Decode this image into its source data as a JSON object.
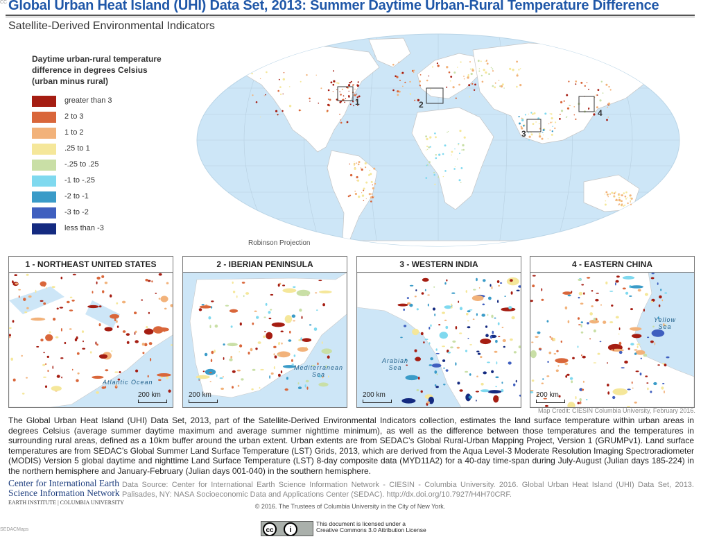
{
  "header": {
    "title": "Global Urban Heat Island (UHI) Data Set, 2013: Summer Daytime Urban-Rural Temperature Difference",
    "subtitle": "Satellite-Derived Environmental Indicators",
    "corner_tag": "CC"
  },
  "legend": {
    "title": "Daytime urban-rural temperature difference in degrees Celsius (urban minus rural)",
    "classes": [
      {
        "label": "greater than 3",
        "color": "#a51d12"
      },
      {
        "label": "2 to 3",
        "color": "#d9663a"
      },
      {
        "label": "1 to 2",
        "color": "#f2b27a"
      },
      {
        "label": ".25 to 1",
        "color": "#f5e79a"
      },
      {
        "label": "-.25 to .25",
        "color": "#c9dfa6"
      },
      {
        "label": "-1 to -.25",
        "color": "#7fd9ef"
      },
      {
        "label": "-2 to -1",
        "color": "#3a9bc8"
      },
      {
        "label": "-3 to -2",
        "color": "#3f5fbf"
      },
      {
        "label": "less than -3",
        "color": "#142a80"
      }
    ]
  },
  "world_map": {
    "projection_label": "Robinson Projection",
    "ocean_color": "#cde6f7",
    "land_color": "#ffffff",
    "inset_markers": [
      "1",
      "2",
      "3",
      "4"
    ]
  },
  "panels": [
    {
      "title": "1  -  NORTHEAST UNITED STATES",
      "scale": "200 km",
      "sea_labels": [
        "Atlantic Ocean"
      ]
    },
    {
      "title": "2  -  IBERIAN PENINSULA",
      "scale": "200 km",
      "sea_labels": [
        "Mediterranean",
        "Sea"
      ]
    },
    {
      "title": "3  -  WESTERN INDIA",
      "scale": "200 km",
      "sea_labels": [
        "Arabian",
        "Sea"
      ]
    },
    {
      "title": "4  -  EASTERN CHINA",
      "scale": "200 km",
      "sea_labels": [
        "Yellow",
        "Sea"
      ]
    }
  ],
  "map_credit": "Map Credit: CIESIN Columbia University, February 2016.",
  "description": "The Global Urban Heat Island (UHI) Data Set, 2013, part of the Satellite-Derived Environmental Indicators collection, estimates the land surface temperature within urban areas in degrees Celsius (average summer daytime maximum and average summer nighttime minimum), as well as the difference between those temperatures and the temperatures in surrounding rural areas, defined as a 10km buffer around the urban extent. Urban extents are from SEDAC’s Global Rural-Urban Mapping Project, Version 1 (GRUMPv1). Land surface temperatures are from SEDAC’s Global Summer Land Surface Temperature (LST) Grids, 2013, which are derived from the Aqua Level-3 Moderate Resolution Imaging Spectroradiometer (MODIS) Version 5 global daytime and nighttime Land Surface Temperature (LST) 8-day composite data (MYD11A2) for a 40-day time-span during July-August (Julian days 185-224) in the northern hemisphere and January-February (Julian days 001-040) in the southern hemisphere.",
  "organization": {
    "line1": "Center for International Earth",
    "line2": "Science Information Network",
    "line3": "EARTH INSTITUTE | COLUMBIA UNIVERSITY"
  },
  "data_source": "Data Source: Center for International Earth Science Information Network - CIESIN - Columbia University. 2016. Global Urban Heat Island (UHI) Data Set, 2013. Palisades, NY: NASA Socioeconomic Data and Applications Center (SEDAC). http://dx.doi.org/10.7927/H4H70CRF.",
  "copyright": "© 2016. The Trustees of Columbia University in the City of New York.",
  "license": {
    "badge_cc": "cc",
    "badge_by": "i",
    "line1": "This document is licensed under a",
    "line2": "Creative Commons 3.0 Attribution License"
  },
  "footer_tag": "SEDACMaps"
}
